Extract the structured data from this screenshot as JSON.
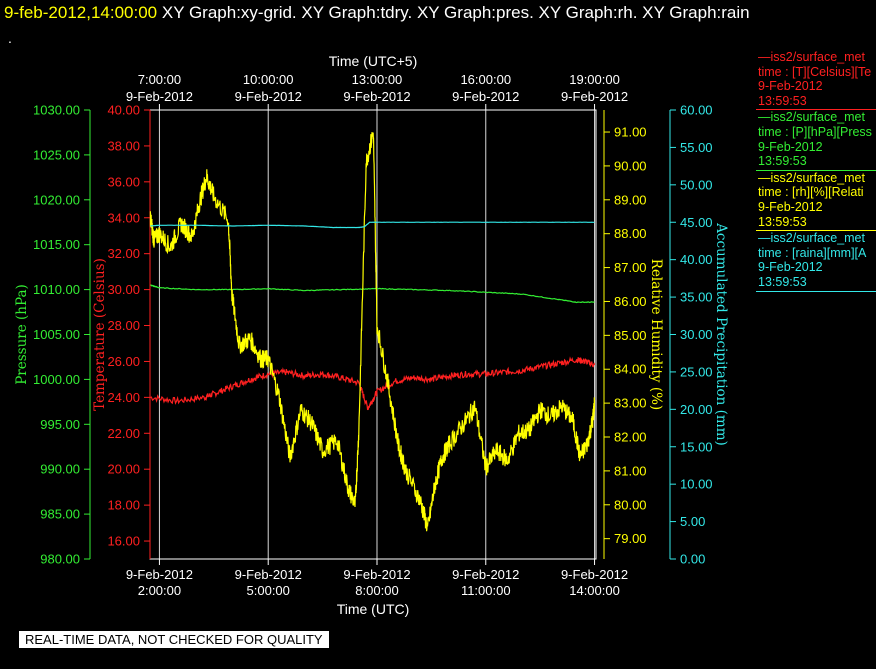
{
  "header": {
    "timestamp": "9-feb-2012,14:00:00",
    "graphs": "XY Graph:xy-grid.  XY Graph:tdry.  XY Graph:pres.  XY Graph:rh.  XY Graph:rain",
    "dot": "."
  },
  "legend": [
    {
      "line1": "—iss2/surface_met",
      "line2": "time : [T][Celsius][Te",
      "line3": "9-Feb-2012",
      "line4": "13:59:53",
      "color": "#ff2020"
    },
    {
      "line1": "—iss2/surface_met",
      "line2": "time : [P][hPa][Press",
      "line3": "9-Feb-2012",
      "line4": "13:59:53",
      "color": "#33ee33"
    },
    {
      "line1": "—iss2/surface_met",
      "line2": "time : [rh][%][Relati",
      "line3": "9-Feb-2012",
      "line4": "13:59:53",
      "color": "#ffff00"
    },
    {
      "line1": "—iss2/surface_met",
      "line2": "time : [raina][mm][A",
      "line3": "9-Feb-2012",
      "line4": "13:59:53",
      "color": "#33e8e8"
    }
  ],
  "banner": "REAL-TIME DATA, NOT CHECKED FOR QUALITY",
  "chart_data": {
    "type": "line",
    "colors": {
      "frame": "#ffffff",
      "grid": "#ffffff",
      "temperature": "#ff2020",
      "pressure": "#33ee33",
      "rh": "#ffff00",
      "rain": "#33e8e8"
    },
    "x_bottom": {
      "label": "Time (UTC)",
      "range_hours": [
        1.74,
        14.04
      ],
      "ticks": [
        {
          "h": 2,
          "date": "9-Feb-2012",
          "time": "2:00:00"
        },
        {
          "h": 5,
          "date": "9-Feb-2012",
          "time": "5:00:00"
        },
        {
          "h": 8,
          "date": "9-Feb-2012",
          "time": "8:00:00"
        },
        {
          "h": 11,
          "date": "9-Feb-2012",
          "time": "11:00:00"
        },
        {
          "h": 14,
          "date": "9-Feb-2012",
          "time": "14:00:00"
        }
      ]
    },
    "x_top": {
      "label": "Time (UTC+5)",
      "ticks": [
        {
          "h": 2,
          "time": "7:00:00",
          "date": "9-Feb-2012"
        },
        {
          "h": 5,
          "time": "10:00:00",
          "date": "9-Feb-2012"
        },
        {
          "h": 8,
          "time": "13:00:00",
          "date": "9-Feb-2012"
        },
        {
          "h": 11,
          "time": "16:00:00",
          "date": "9-Feb-2012"
        },
        {
          "h": 14,
          "time": "19:00:00",
          "date": "9-Feb-2012"
        }
      ]
    },
    "axes": {
      "pressure": {
        "label": "Pressure (hPa)",
        "range": [
          980,
          1030
        ],
        "ticks": [
          "980.00",
          "985.00",
          "990.00",
          "995.00",
          "1000.00",
          "1005.00",
          "1010.00",
          "1015.00",
          "1020.00",
          "1025.00",
          "1030.00"
        ]
      },
      "temperature": {
        "label": "Temperature (Celsius)",
        "range": [
          15,
          40
        ],
        "ticks": [
          "16.00",
          "18.00",
          "20.00",
          "22.00",
          "24.00",
          "26.00",
          "28.00",
          "30.00",
          "32.00",
          "34.00",
          "36.00",
          "38.00",
          "40.00"
        ]
      },
      "rh": {
        "label": "Relative Humidity (%)",
        "range": [
          78.4,
          91.65
        ],
        "ticks": [
          "79.00",
          "80.00",
          "81.00",
          "82.00",
          "83.00",
          "84.00",
          "85.00",
          "86.00",
          "87.00",
          "88.00",
          "89.00",
          "90.00",
          "91.00"
        ]
      },
      "rain": {
        "label": "Accumulated Precipitation (mm)",
        "range": [
          0,
          60
        ],
        "ticks": [
          "0.00",
          "5.00",
          "10.00",
          "15.00",
          "20.00",
          "25.00",
          "30.00",
          "35.00",
          "40.00",
          "45.00",
          "50.00",
          "55.00",
          "60.00"
        ]
      }
    },
    "series": [
      {
        "name": "iss2/surface_met T",
        "axis": "temperature",
        "color": "#ff2020",
        "x": [
          1.75,
          2.5,
          3.25,
          3.5,
          4.0,
          4.5,
          5.0,
          5.5,
          6.0,
          6.5,
          7.0,
          7.5,
          7.75,
          8.0,
          8.5,
          9.0,
          9.5,
          10.0,
          10.5,
          11.0,
          11.5,
          12.0,
          12.5,
          13.0,
          13.5,
          13.75,
          14.0
        ],
        "y": [
          24.0,
          23.8,
          24.0,
          24.2,
          24.6,
          25.0,
          25.3,
          25.4,
          25.2,
          25.3,
          25.1,
          24.8,
          23.4,
          24.3,
          24.9,
          25.1,
          25.0,
          25.2,
          25.3,
          25.3,
          25.4,
          25.5,
          25.7,
          25.9,
          26.1,
          26.0,
          25.8
        ]
      },
      {
        "name": "iss2/surface_met P",
        "axis": "pressure",
        "color": "#33ee33",
        "x": [
          1.75,
          2.0,
          3.0,
          4.0,
          5.0,
          6.0,
          7.0,
          8.0,
          9.0,
          10.0,
          11.0,
          12.0,
          13.0,
          13.5,
          14.0
        ],
        "y": [
          1010.5,
          1010.2,
          1010.0,
          1010.0,
          1010.1,
          1009.9,
          1010.0,
          1010.1,
          1010.0,
          1009.9,
          1009.7,
          1009.5,
          1008.9,
          1008.6,
          1008.6
        ]
      },
      {
        "name": "iss2/surface_met rh",
        "axis": "rh",
        "color": "#ffff00",
        "x": [
          1.75,
          1.85,
          2.0,
          2.3,
          2.6,
          2.9,
          3.1,
          3.3,
          3.5,
          3.9,
          4.0,
          4.2,
          4.5,
          4.8,
          5.0,
          5.3,
          5.6,
          5.9,
          6.2,
          6.5,
          6.9,
          7.2,
          7.4,
          7.5,
          7.7,
          7.9,
          8.0,
          8.3,
          8.6,
          8.8,
          9.2,
          9.4,
          9.6,
          9.8,
          10.0,
          10.4,
          10.7,
          11.0,
          11.3,
          11.6,
          11.9,
          12.2,
          12.5,
          12.8,
          13.1,
          13.4,
          13.6,
          13.8,
          13.95,
          14.0
        ],
        "y": [
          88.5,
          87.8,
          88.0,
          87.6,
          88.3,
          87.9,
          88.9,
          89.7,
          89.1,
          88.4,
          86.2,
          84.7,
          84.9,
          84.3,
          84.3,
          83.2,
          81.4,
          82.8,
          82.4,
          81.6,
          81.9,
          80.5,
          80.0,
          82.2,
          90.1,
          91.0,
          85.3,
          83.6,
          81.7,
          81.0,
          80.1,
          79.3,
          80.6,
          81.4,
          81.8,
          82.4,
          82.9,
          81.1,
          81.6,
          81.3,
          82.1,
          82.2,
          82.8,
          82.6,
          82.9,
          82.5,
          81.4,
          81.8,
          82.5,
          83.0
        ]
      },
      {
        "name": "iss2/surface_met raina",
        "axis": "rain",
        "color": "#33e8e8",
        "x": [
          1.75,
          2.0,
          3.0,
          4.0,
          5.0,
          6.0,
          6.8,
          7.5,
          7.65,
          7.8,
          8.0,
          9.0,
          10.0,
          11.0,
          12.0,
          13.0,
          14.0
        ],
        "y": [
          44.5,
          44.6,
          44.6,
          44.5,
          44.6,
          44.5,
          44.3,
          44.3,
          44.4,
          45.0,
          45.0,
          45.0,
          45.0,
          45.0,
          45.0,
          45.0,
          45.0
        ]
      }
    ]
  }
}
